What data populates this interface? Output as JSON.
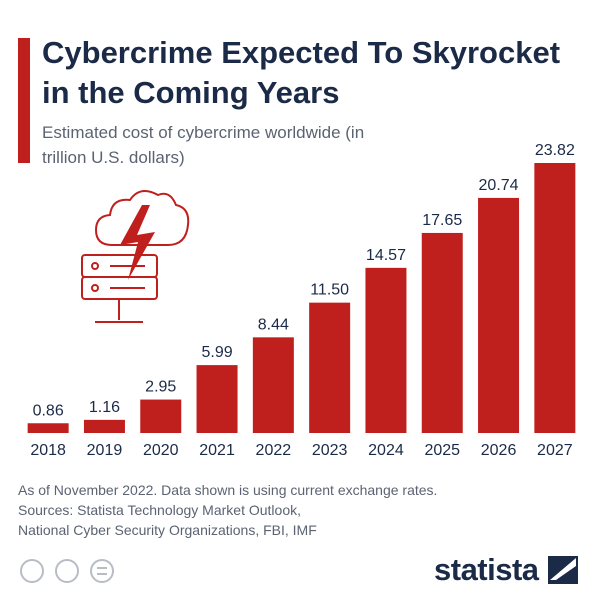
{
  "chart_data": {
    "type": "bar",
    "title": "Cybercrime Expected To Skyrocket in the Coming Years",
    "subtitle": "Estimated cost of cybercrime worldwide (in trillion U.S. dollars)",
    "categories": [
      "2018",
      "2019",
      "2020",
      "2021",
      "2022",
      "2023",
      "2024",
      "2025",
      "2026",
      "2027"
    ],
    "values": [
      0.86,
      1.16,
      2.95,
      5.99,
      8.44,
      11.5,
      14.57,
      17.65,
      20.74,
      23.82
    ],
    "value_labels": [
      "0.86",
      "1.16",
      "2.95",
      "5.99",
      "8.44",
      "11.50",
      "14.57",
      "17.65",
      "20.74",
      "23.82"
    ],
    "color": "#c0201d",
    "note": "As of November 2022. Data shown is using current exchange rates.",
    "sources": "Sources: Statista Technology Market Outlook, National Cyber Security Organizations, FBI, IMF",
    "brand": "statista"
  }
}
